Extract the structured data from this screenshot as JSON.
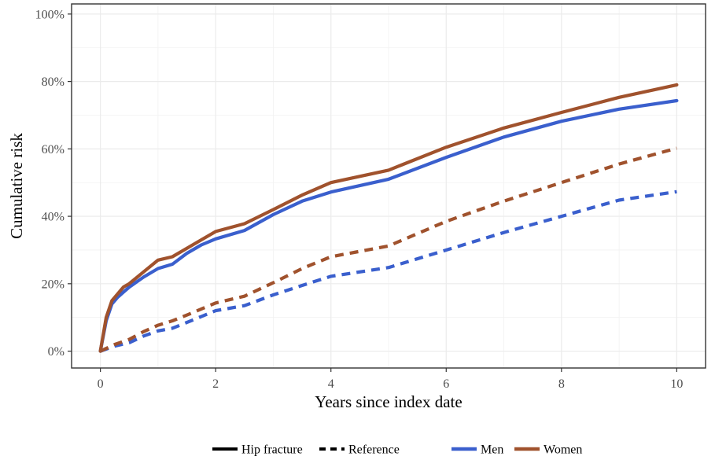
{
  "chart_data": {
    "type": "line",
    "xlabel": "Years since index date",
    "ylabel": "Cumulative risk",
    "xlim": [
      -0.5,
      10.5
    ],
    "ylim": [
      -0.05,
      1.03
    ],
    "x_ticks": [
      0,
      2,
      4,
      6,
      8,
      10
    ],
    "x_tick_labels": [
      "0",
      "2",
      "4",
      "6",
      "8",
      "10"
    ],
    "y_ticks": [
      0,
      0.2,
      0.4,
      0.6,
      0.8,
      1.0
    ],
    "y_tick_labels": [
      "0%",
      "20%",
      "40%",
      "60%",
      "80%",
      "100%"
    ],
    "grid": true,
    "legend_position": "bottom",
    "colors": {
      "Men": "#3A5FCD",
      "Women": "#A0522D"
    },
    "legend": {
      "linetype": [
        {
          "label": "Hip fracture",
          "style": "solid"
        },
        {
          "label": "Reference",
          "style": "dashed"
        }
      ],
      "color": [
        {
          "label": "Men",
          "color": "#3A5FCD"
        },
        {
          "label": "Women",
          "color": "#A0522D"
        }
      ]
    },
    "series": [
      {
        "group": "Men",
        "linetype": "Hip fracture",
        "x": [
          0,
          0.1,
          0.2,
          0.3,
          0.4,
          0.5,
          0.75,
          1,
          1.25,
          1.5,
          1.75,
          2,
          2.5,
          3,
          3.5,
          4,
          5,
          6,
          7,
          8,
          9,
          10
        ],
        "y": [
          0.0,
          0.09,
          0.14,
          0.16,
          0.175,
          0.19,
          0.22,
          0.245,
          0.258,
          0.29,
          0.315,
          0.333,
          0.358,
          0.405,
          0.445,
          0.472,
          0.51,
          0.575,
          0.635,
          0.682,
          0.718,
          0.743
        ]
      },
      {
        "group": "Women",
        "linetype": "Hip fracture",
        "x": [
          0,
          0.1,
          0.2,
          0.3,
          0.4,
          0.5,
          0.75,
          1,
          1.25,
          1.5,
          1.75,
          2,
          2.5,
          3,
          3.5,
          4,
          5,
          6,
          7,
          8,
          9,
          10
        ],
        "y": [
          0.0,
          0.1,
          0.15,
          0.17,
          0.19,
          0.2,
          0.235,
          0.27,
          0.28,
          0.305,
          0.33,
          0.355,
          0.378,
          0.42,
          0.463,
          0.5,
          0.537,
          0.605,
          0.662,
          0.708,
          0.753,
          0.79
        ]
      },
      {
        "group": "Men",
        "linetype": "Reference",
        "x": [
          0,
          0.25,
          0.5,
          0.75,
          1,
          1.25,
          1.5,
          2,
          2.5,
          3,
          3.5,
          4,
          5,
          6,
          7,
          8,
          9,
          10
        ],
        "y": [
          0.0,
          0.015,
          0.025,
          0.045,
          0.06,
          0.068,
          0.085,
          0.12,
          0.135,
          0.167,
          0.195,
          0.222,
          0.248,
          0.3,
          0.352,
          0.4,
          0.448,
          0.473
        ]
      },
      {
        "group": "Women",
        "linetype": "Reference",
        "x": [
          0,
          0.25,
          0.5,
          0.75,
          1,
          1.25,
          1.5,
          2,
          2.5,
          3,
          3.5,
          4,
          5,
          6,
          7,
          8,
          9,
          10
        ],
        "y": [
          0.0,
          0.02,
          0.035,
          0.058,
          0.077,
          0.09,
          0.107,
          0.143,
          0.163,
          0.203,
          0.245,
          0.28,
          0.312,
          0.385,
          0.445,
          0.5,
          0.555,
          0.602
        ]
      }
    ]
  }
}
